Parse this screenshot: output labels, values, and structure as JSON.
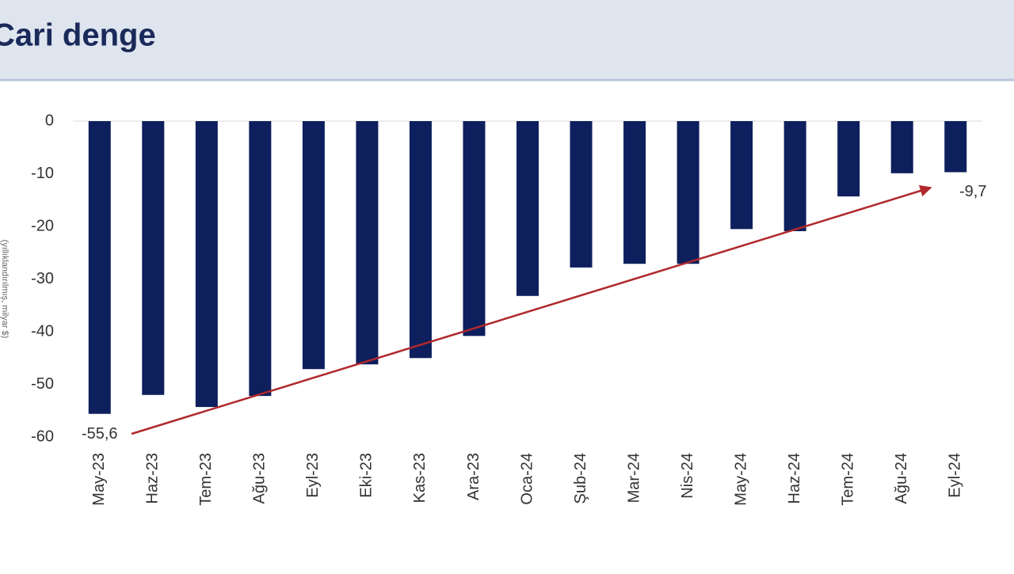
{
  "chart_data": {
    "type": "bar",
    "title": "Cari denge",
    "y_axis_label": "(yıllıklandırılmış, milyar $)",
    "categories": [
      "May-23",
      "Haz-23",
      "Tem-23",
      "Ağu-23",
      "Eyl-23",
      "Eki-23",
      "Kas-23",
      "Ara-23",
      "Oca-24",
      "Şub-24",
      "Mar-24",
      "Nis-24",
      "May-24",
      "Haz-24",
      "Tem-24",
      "Ağu-24",
      "Eyl-24"
    ],
    "values": [
      -55.6,
      -52.0,
      -54.3,
      -52.2,
      -47.1,
      -46.2,
      -45.0,
      -40.8,
      -33.2,
      -27.8,
      -27.1,
      -27.1,
      -20.5,
      -20.9,
      -14.3,
      -9.9,
      -9.7
    ],
    "value_labels": [
      "-55,6",
      null,
      null,
      null,
      null,
      null,
      null,
      null,
      null,
      null,
      null,
      null,
      null,
      null,
      null,
      null,
      "-9,7"
    ],
    "color": "#0d1f5c",
    "ylim": [
      -60,
      0
    ],
    "yticks": [
      0,
      -10,
      -20,
      -30,
      -40,
      -50,
      -60
    ],
    "grid": false
  }
}
